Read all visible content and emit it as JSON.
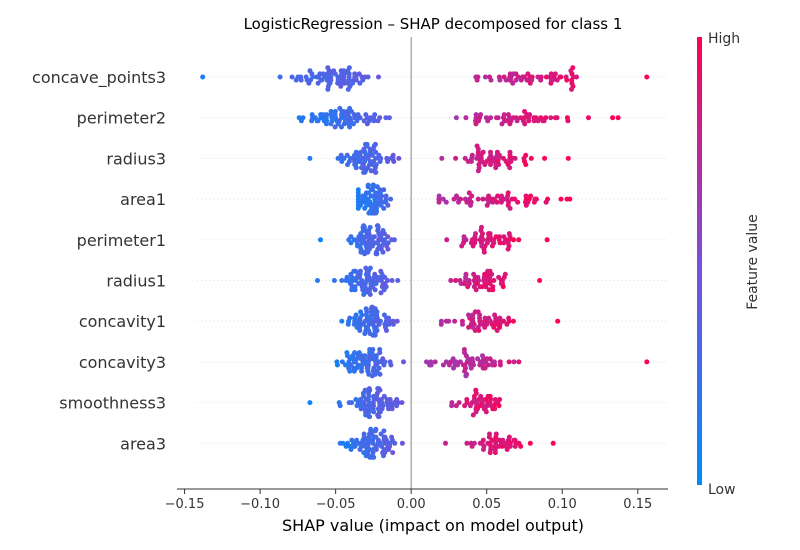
{
  "chart_data": {
    "type": "scatter",
    "title": "LogisticRegression – SHAP decomposed for class 1",
    "xlabel": "SHAP value (impact on model output)",
    "xlim": [
      -0.155,
      0.17
    ],
    "xticks": [
      "−0.15",
      "−0.10",
      "−0.05",
      "0.00",
      "0.05",
      "0.10",
      "0.15"
    ],
    "xtick_values": [
      -0.15,
      -0.1,
      -0.05,
      0.0,
      0.05,
      0.1,
      0.15
    ],
    "colorbar": {
      "label": "Feature value",
      "high": "High",
      "low": "Low",
      "high_color": "#ff0052",
      "low_color": "#008bfb"
    },
    "colors": {
      "axis": "#333333",
      "zero_line": "#999999",
      "guide": "#dddddd"
    },
    "features": [
      {
        "name": "concave_points3",
        "min": -0.138,
        "max": 0.156,
        "neg_center": -0.05,
        "neg_spread": 0.014,
        "pos_center": 0.08,
        "pos_spread": 0.018,
        "neg_count": 70,
        "pos_count": 55,
        "outliers": [
          -0.138,
          0.156
        ]
      },
      {
        "name": "perimeter2",
        "min": -0.075,
        "max": 0.137,
        "neg_center": -0.045,
        "neg_spread": 0.012,
        "pos_center": 0.07,
        "pos_spread": 0.022,
        "neg_count": 70,
        "pos_count": 50,
        "outliers": [
          0.137
        ]
      },
      {
        "name": "radius3",
        "min": -0.067,
        "max": 0.104,
        "neg_center": -0.03,
        "neg_spread": 0.008,
        "pos_center": 0.055,
        "pos_spread": 0.012,
        "neg_count": 70,
        "pos_count": 55,
        "outliers": [
          -0.067,
          0.104
        ]
      },
      {
        "name": "area1",
        "min": -0.035,
        "max": 0.105,
        "neg_center": -0.027,
        "neg_spread": 0.005,
        "pos_center": 0.055,
        "pos_spread": 0.02,
        "neg_count": 65,
        "pos_count": 55,
        "outliers": [
          0.105
        ]
      },
      {
        "name": "perimeter1",
        "min": -0.06,
        "max": 0.09,
        "neg_center": -0.028,
        "neg_spread": 0.008,
        "pos_center": 0.05,
        "pos_spread": 0.01,
        "neg_count": 70,
        "pos_count": 50,
        "outliers": [
          -0.06,
          0.09
        ]
      },
      {
        "name": "radius1",
        "min": -0.062,
        "max": 0.085,
        "neg_center": -0.028,
        "neg_spread": 0.008,
        "pos_center": 0.048,
        "pos_spread": 0.009,
        "neg_count": 70,
        "pos_count": 50,
        "outliers": [
          -0.062,
          0.085
        ]
      },
      {
        "name": "concavity1",
        "min": -0.05,
        "max": 0.097,
        "neg_center": -0.028,
        "neg_spread": 0.008,
        "pos_center": 0.045,
        "pos_spread": 0.012,
        "neg_count": 70,
        "pos_count": 50,
        "outliers": [
          0.097
        ]
      },
      {
        "name": "concavity3",
        "min": -0.052,
        "max": 0.156,
        "neg_center": -0.03,
        "neg_spread": 0.009,
        "pos_center": 0.04,
        "pos_spread": 0.015,
        "neg_count": 70,
        "pos_count": 55,
        "outliers": [
          0.156
        ]
      },
      {
        "name": "smoothness3",
        "min": -0.067,
        "max": 0.078,
        "neg_center": -0.025,
        "neg_spread": 0.008,
        "pos_center": 0.045,
        "pos_spread": 0.01,
        "neg_count": 70,
        "pos_count": 45,
        "outliers": [
          -0.067
        ]
      },
      {
        "name": "area3",
        "min": -0.05,
        "max": 0.094,
        "neg_center": -0.025,
        "neg_spread": 0.009,
        "pos_center": 0.055,
        "pos_spread": 0.01,
        "neg_count": 75,
        "pos_count": 45,
        "outliers": [
          0.094
        ]
      }
    ]
  }
}
